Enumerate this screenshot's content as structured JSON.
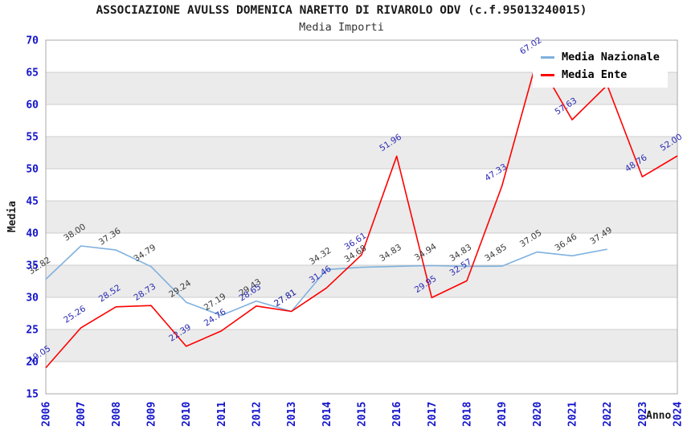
{
  "chart_data": {
    "type": "line",
    "title": "ASSOCIAZIONE AVULSS DOMENICA NARETTO DI RIVAROLO ODV (c.f.95013240015)",
    "subtitle": "Media Importi",
    "xlabel": "Anno",
    "ylabel": "Media",
    "ylim": [
      15,
      70
    ],
    "yticks": [
      15,
      20,
      25,
      30,
      35,
      40,
      45,
      50,
      55,
      60,
      65,
      70
    ],
    "x_categories": [
      "2006",
      "2007",
      "2008",
      "2009",
      "2010",
      "2011",
      "2012",
      "2013",
      "2014",
      "2015",
      "2016",
      "2017",
      "2018",
      "2019",
      "2020",
      "2021",
      "2022",
      "2023",
      "2024"
    ],
    "grid": "horizontal-only",
    "legend_position": "top-right",
    "colors": {
      "band": "#ebebeb",
      "gridline": "#cccccc",
      "plot_border": "#aaaaaa",
      "tick_text": "#1414cc",
      "title_text": "#1a1a1a"
    },
    "series": [
      {
        "name": "Media Nazionale",
        "color": "#7fb1de",
        "label_color": "#3a3a3a",
        "x": [
          2006,
          2007,
          2008,
          2009,
          2010,
          2011,
          2012,
          2013,
          2014,
          2015,
          2016,
          2017,
          2018,
          2019,
          2020,
          2021,
          2022
        ],
        "values": [
          32.82,
          38.0,
          37.36,
          34.79,
          29.24,
          27.19,
          29.43,
          27.81,
          34.32,
          34.68,
          34.83,
          34.94,
          34.83,
          34.85,
          37.05,
          36.46,
          37.49
        ],
        "labels": [
          "32.82",
          "38.00",
          "37.36",
          "34.79",
          "29.24",
          "27.19",
          "29.43",
          "27.81",
          "34.32",
          "34.68",
          "34.83",
          "34.94",
          "34.83",
          "34.85",
          "37.05",
          "36.46",
          "37.49"
        ]
      },
      {
        "name": "Media Ente",
        "color": "#fe0000",
        "label_color": "#2b2bb4",
        "x": [
          2006,
          2007,
          2008,
          2009,
          2010,
          2011,
          2012,
          2013,
          2014,
          2015,
          2016,
          2017,
          2018,
          2019,
          2020,
          2021,
          2022,
          2023,
          2024
        ],
        "values": [
          19.05,
          25.26,
          28.52,
          28.73,
          22.39,
          24.76,
          28.65,
          27.81,
          31.46,
          36.61,
          51.96,
          29.95,
          32.57,
          47.33,
          67.02,
          57.63,
          63.0,
          48.76,
          52.0
        ],
        "labels": [
          "19.05",
          "25.26",
          "28.52",
          "28.73",
          "22.39",
          "24.76",
          "28.65",
          "27.81",
          "31.46",
          "36.61",
          "51.96",
          "29.95",
          "32.57",
          "47.33",
          "67.02",
          "57.63",
          "",
          "48.76",
          "52.00"
        ]
      }
    ]
  }
}
